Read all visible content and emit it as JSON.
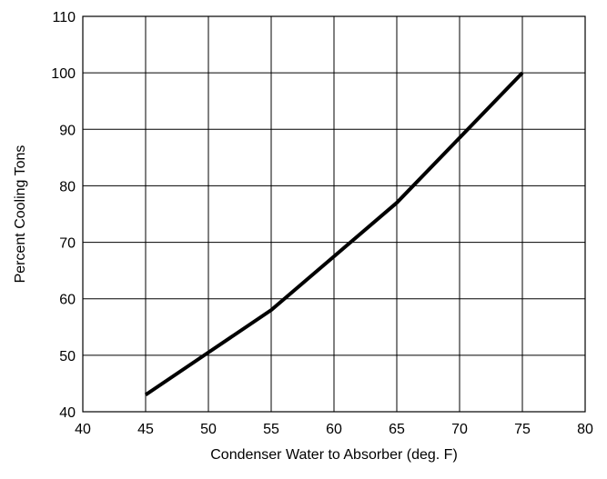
{
  "chart_data": {
    "type": "line",
    "title": "",
    "xlabel": "Condenser Water to Absorber (deg. F)",
    "ylabel": "Percent Cooling Tons",
    "xlim": [
      40,
      80
    ],
    "ylim": [
      40,
      110
    ],
    "xticks": [
      40,
      45,
      50,
      55,
      60,
      65,
      70,
      75,
      80
    ],
    "yticks": [
      40,
      50,
      60,
      70,
      80,
      90,
      100,
      110
    ],
    "grid": true,
    "legend": "none",
    "series": [
      {
        "x": [
          45,
          50,
          55,
          60,
          65,
          70,
          75
        ],
        "y": [
          43,
          50.5,
          58,
          67.5,
          77,
          88.5,
          100
        ]
      }
    ],
    "colors": {
      "line": "#000000",
      "grid": "#000000",
      "background": "#ffffff"
    }
  }
}
